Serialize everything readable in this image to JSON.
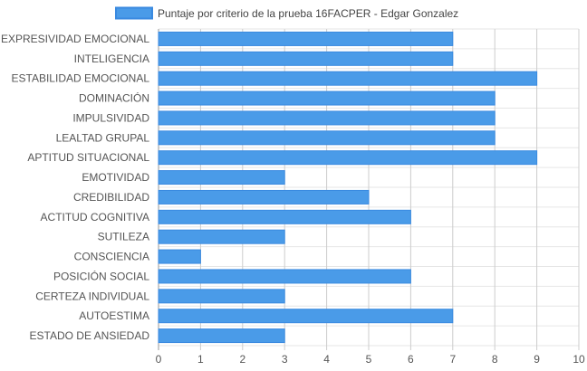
{
  "chart_data": {
    "type": "bar",
    "orientation": "horizontal",
    "categories": [
      "EXPRESIVIDAD EMOCIONAL",
      "INTELIGENCIA",
      "ESTABILIDAD EMOCIONAL",
      "DOMINACIÓN",
      "IMPULSIVIDAD",
      "LEALTAD GRUPAL",
      "APTITUD SITUACIONAL",
      "EMOTIVIDAD",
      "CREDIBILIDAD",
      "ACTITUD COGNITIVA",
      "SUTILEZA",
      "CONSCIENCIA",
      "POSICIÓN SOCIAL",
      "CERTEZA INDIVIDUAL",
      "AUTOESTIMA",
      "ESTADO DE ANSIEDAD"
    ],
    "series": [
      {
        "name": "Puntaje por criterio de la prueba 16FACPER - Edgar Gonzalez",
        "values": [
          7,
          7,
          9,
          8,
          8,
          8,
          9,
          3,
          5,
          6,
          3,
          1,
          6,
          3,
          7,
          3
        ]
      }
    ],
    "xlim": [
      0,
      10
    ],
    "xticks": [
      "0",
      "1",
      "2",
      "3",
      "4",
      "5",
      "6",
      "7",
      "8",
      "9",
      "10"
    ],
    "grid": true,
    "legend_position": "top-center",
    "colors": {
      "bar_fill": "#4a9be8",
      "bar_stroke": "#3a8ae0",
      "grid": "#cccccc",
      "axis": "#999999"
    }
  }
}
